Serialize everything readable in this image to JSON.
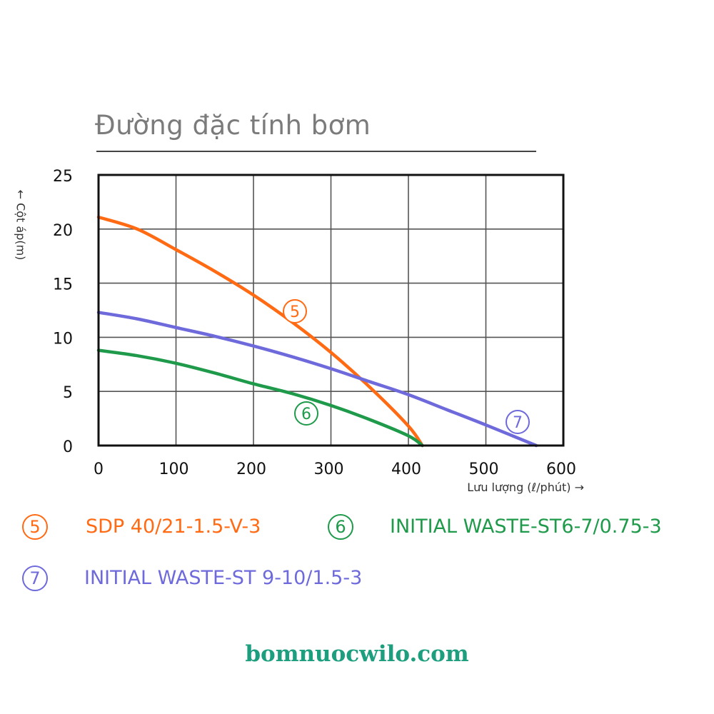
{
  "header": {
    "title": "Đường đặc tính bơm"
  },
  "axes": {
    "ylabel": "← Cột áp(m)",
    "xlabel": "Lưu lượng (ℓ/phút) →"
  },
  "legend": [
    {
      "num": "5",
      "label": "SDP 40/21-1.5-V-3",
      "color": "#ff6a13"
    },
    {
      "num": "6",
      "label": "INITIAL WASTE-ST6-7/0.75-3",
      "color": "#1e9a4a"
    },
    {
      "num": "7",
      "label": "INITIAL WASTE-ST 9-10/1.5-3",
      "color": "#6e6adb"
    }
  ],
  "footer": {
    "website": "bomnuocwilo.com"
  },
  "chart_data": {
    "type": "line",
    "title": "Đường đặc tính bơm",
    "xlabel": "Lưu lượng (ℓ/phút)",
    "ylabel": "Cột áp(m)",
    "xlim": [
      0,
      600
    ],
    "ylim": [
      0,
      25
    ],
    "xticks": [
      0,
      100,
      200,
      300,
      400,
      500,
      600
    ],
    "yticks": [
      0,
      5,
      10,
      15,
      20,
      25
    ],
    "grid": true,
    "legend_position": "bottom",
    "series": [
      {
        "name": "SDP 40/21-1.5-V-3",
        "marker": "5",
        "color": "#ff6a13",
        "x": [
          0,
          50,
          100,
          150,
          200,
          250,
          300,
          350,
          400,
          418
        ],
        "y": [
          21.1,
          20.0,
          18.1,
          16.1,
          13.9,
          11.4,
          8.6,
          5.4,
          1.8,
          0
        ]
      },
      {
        "name": "INITIAL WASTE-ST6-7/0.75-3",
        "marker": "6",
        "color": "#1e9a4a",
        "x": [
          0,
          50,
          100,
          150,
          200,
          250,
          300,
          350,
          400,
          418
        ],
        "y": [
          8.8,
          8.3,
          7.6,
          6.7,
          5.7,
          4.8,
          3.7,
          2.4,
          0.9,
          0
        ]
      },
      {
        "name": "INITIAL WASTE-ST 9-10/1.5-3",
        "marker": "7",
        "color": "#6e6adb",
        "x": [
          0,
          50,
          100,
          150,
          200,
          250,
          300,
          350,
          400,
          450,
          500,
          565
        ],
        "y": [
          12.3,
          11.7,
          10.9,
          10.1,
          9.2,
          8.2,
          7.1,
          5.9,
          4.7,
          3.3,
          1.9,
          0
        ]
      }
    ]
  }
}
